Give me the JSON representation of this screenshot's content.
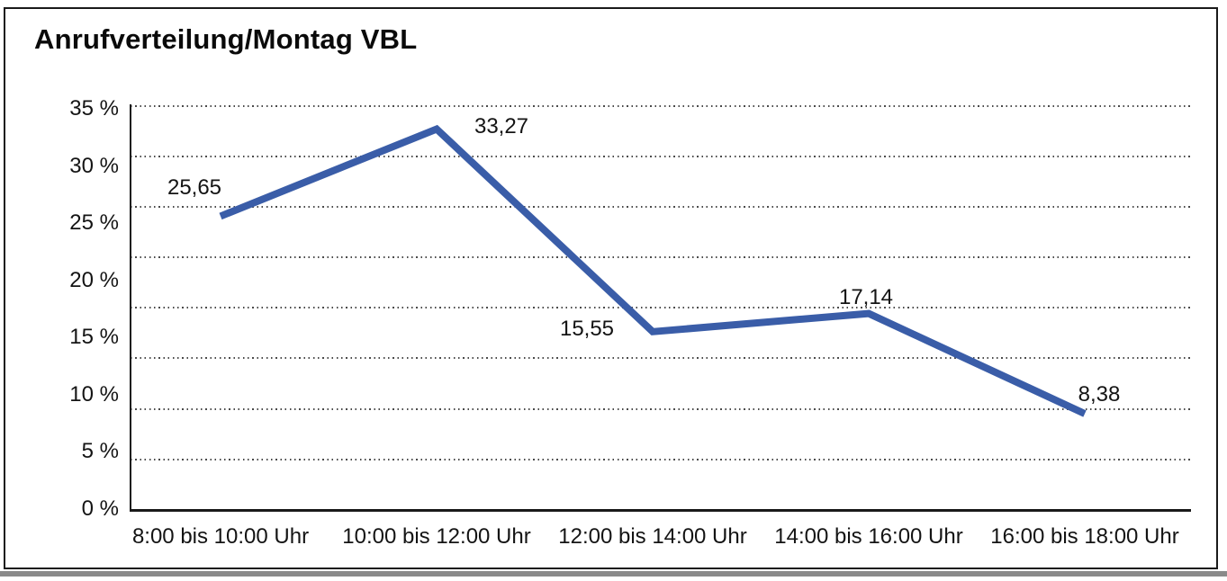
{
  "window": {
    "background": "#ffffff",
    "frame_border_color": "#1a1a1a",
    "bottom_shadow_color": "#8a8a8a"
  },
  "chart_data": {
    "type": "line",
    "title": "Anrufverteilung/Montag VBL",
    "categories": [
      "8:00 bis 10:00 Uhr",
      "10:00 bis 12:00 Uhr",
      "12:00 bis 14:00 Uhr",
      "14:00 bis 16:00 Uhr",
      "16:00 bis 18:00 Uhr"
    ],
    "values": [
      25.65,
      33.27,
      15.55,
      17.14,
      8.38
    ],
    "value_labels": [
      "25,65",
      "33,27",
      "15,55",
      "17,14",
      "8,38"
    ],
    "y_ticks": [
      "35 %",
      "30 %",
      "25 %",
      "20 %",
      "15 %",
      "10 %",
      "5 %",
      "0 %"
    ],
    "ylim": [
      0,
      35
    ],
    "xlabel": "",
    "ylabel": "",
    "grid": "horizontal-dotted",
    "legend": "none",
    "line_color": "#3a5da8",
    "line_width": 8
  }
}
